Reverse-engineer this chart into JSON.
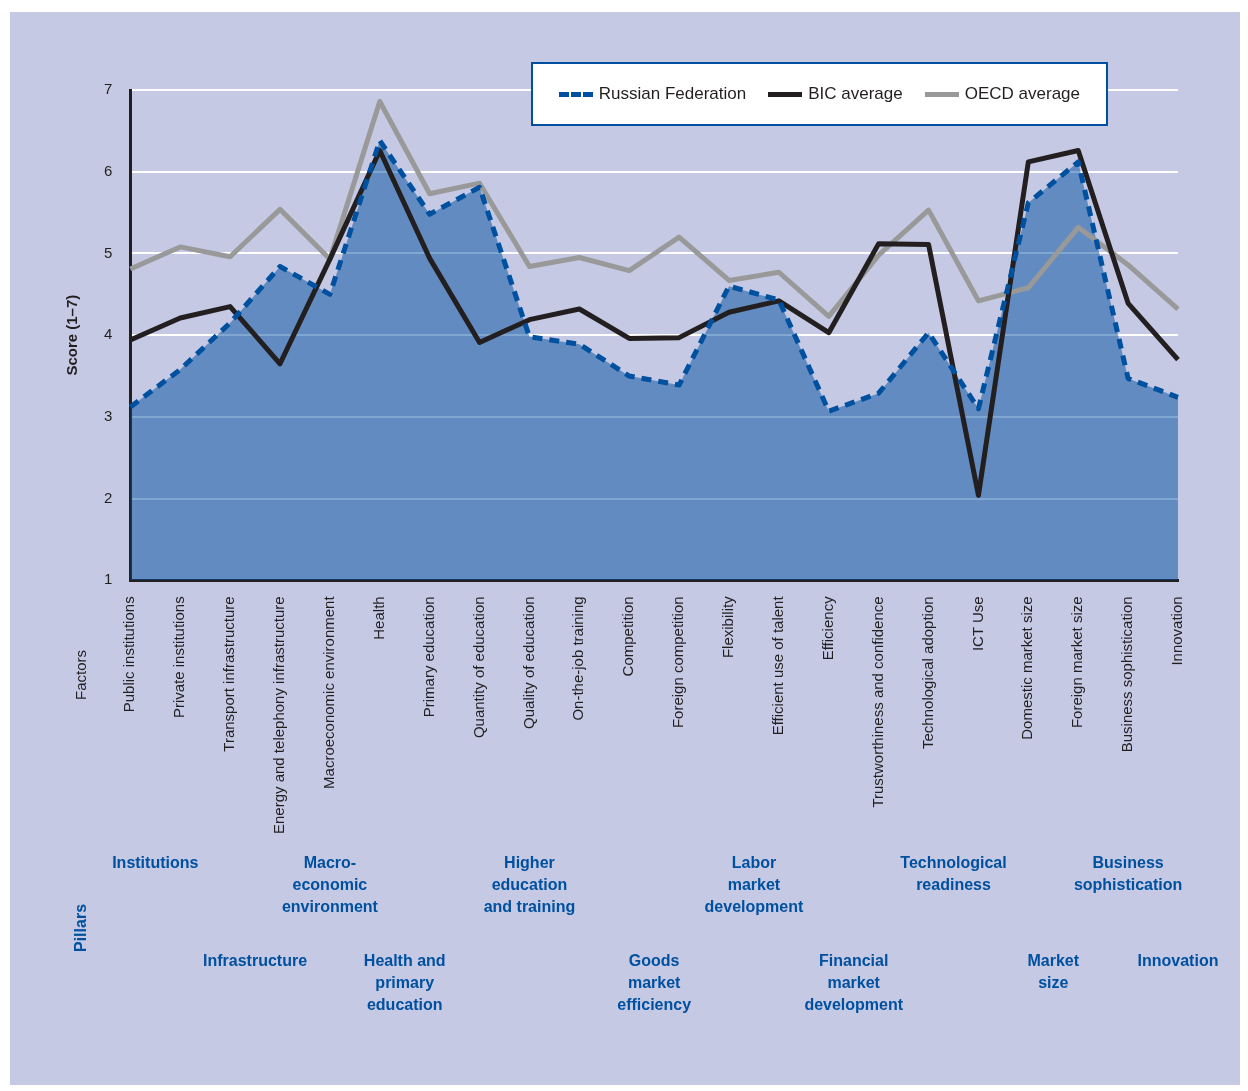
{
  "chart_data": {
    "type": "line",
    "ylabel": "Score (1–7)",
    "categories": [
      "Public institutions",
      "Private institutions",
      "Transport infrastructure",
      "Energy and telephony infrastructure",
      "Macroeconomic environment",
      "Health",
      "Primary education",
      "Quantity of education",
      "Quality of education",
      "On-the-job training",
      "Competition",
      "Foreign competition",
      "Flexibility",
      "Efficient use of talent",
      "Efficiency",
      "Trustworthiness and confidence",
      "Technological adoption",
      "ICT Use",
      "Domestic market size",
      "Foreign market size",
      "Business sophistication",
      "Innovation"
    ],
    "series": [
      {
        "name": "Russian Federation",
        "type": "area",
        "line_style": "dashed",
        "color": "#0050a0",
        "values": [
          3.12,
          3.58,
          4.15,
          4.84,
          4.5,
          6.38,
          5.48,
          5.81,
          3.98,
          3.89,
          3.5,
          3.39,
          4.6,
          4.43,
          3.07,
          3.29,
          4.03,
          3.1,
          5.62,
          6.12,
          3.47,
          3.24
        ]
      },
      {
        "name": "BIC average",
        "type": "line",
        "line_style": "solid",
        "color": "#231f20",
        "values": [
          3.94,
          4.21,
          4.35,
          3.65,
          4.93,
          6.26,
          4.94,
          3.91,
          4.19,
          4.32,
          3.96,
          3.97,
          4.28,
          4.42,
          4.03,
          5.12,
          5.11,
          2.04,
          6.12,
          6.26,
          4.39,
          3.7
        ]
      },
      {
        "name": "OECD average",
        "type": "line",
        "line_style": "solid",
        "color": "#999999",
        "values": [
          4.81,
          5.08,
          4.96,
          5.54,
          4.93,
          6.86,
          5.73,
          5.86,
          4.84,
          4.95,
          4.79,
          5.2,
          4.67,
          4.77,
          4.23,
          4.98,
          5.53,
          4.42,
          4.58,
          5.32,
          4.86,
          4.32
        ]
      }
    ],
    "ylim": [
      1,
      7
    ],
    "yticks": [
      1,
      2,
      3,
      4,
      5,
      6,
      7
    ],
    "grid": "y",
    "legend": "top right",
    "marker": "none",
    "annotations": [
      "Institutions",
      "Infrastructure",
      "Macro-\neconomic\nenvironment",
      "Health and\nprimary\neducation",
      "Higher\neducation\nand training",
      "Goods\nmarket\nefficiency",
      "Labor\nmarket\ndevelopment",
      "Financial\nmarket\ndevelopment",
      "Technological\nreadiness",
      "Market\nsize",
      "Business\nsophistication",
      "Innovation",
      "Factors",
      "Pillars"
    ]
  }
}
